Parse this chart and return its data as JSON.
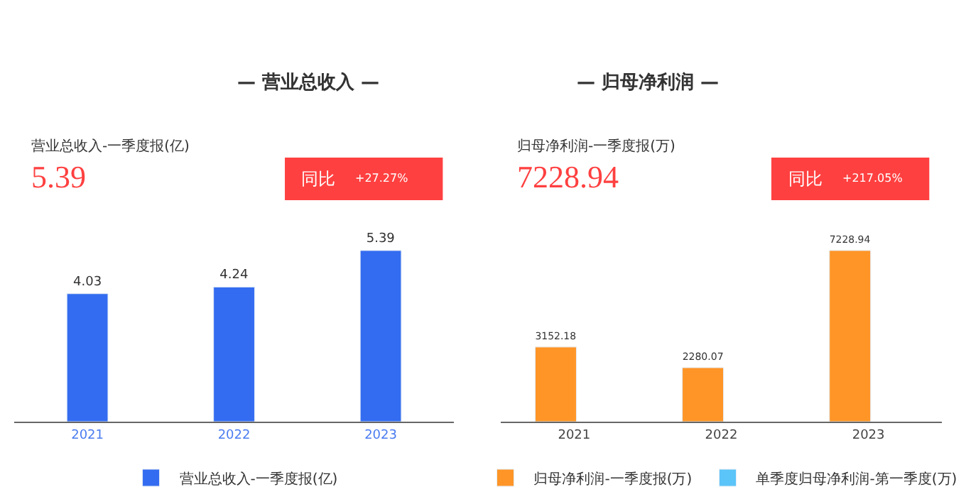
{
  "chart_data": [
    {
      "type": "bar",
      "title": "— 营业总收入 —",
      "subtitle": "营业总收入-一季度报(亿)",
      "annotations": [
        "5.39",
        "同比",
        "+27.27%"
      ],
      "categories": [
        "2021",
        "2022",
        "2023"
      ],
      "series": [
        {
          "name": "营业总收入-一季度报(亿)",
          "color": "#336cf0",
          "values": [
            4.03,
            4.24,
            5.39
          ]
        }
      ],
      "data_labels": true,
      "tick_labels": "x",
      "legend": "bottom"
    },
    {
      "type": "bar",
      "title": "— 归母净利润 —",
      "subtitle": "归母净利润-一季度报(万)",
      "annotations": [
        "7228.94",
        "同比",
        "+217.05%"
      ],
      "categories": [
        "2021",
        "2022",
        "2023"
      ],
      "series": [
        {
          "name": "归母净利润-一季度报(万)",
          "color": "#ff9526",
          "values": [
            3152.18,
            2280.07,
            7228.94
          ]
        },
        {
          "name": "单季度归母净利润-第一季度(万)",
          "color": "#5bc4f8",
          "values": [
            null,
            null,
            null
          ]
        }
      ],
      "data_labels": true,
      "tick_labels": "x",
      "legend": "bottom"
    }
  ]
}
